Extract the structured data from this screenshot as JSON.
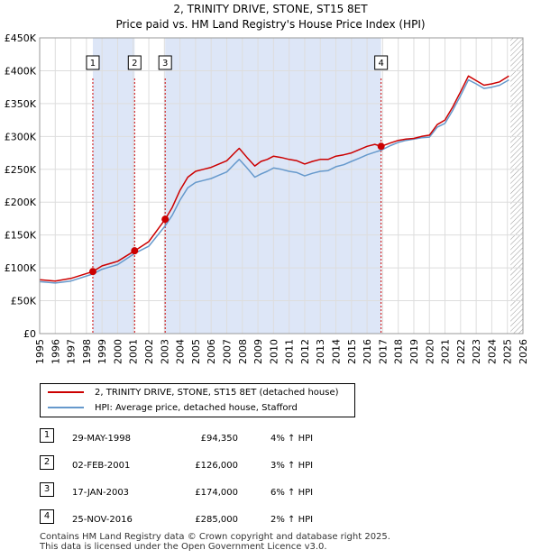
{
  "title_line1": "2, TRINITY DRIVE, STONE, ST15 8ET",
  "title_line2": "Price paid vs. HM Land Registry's House Price Index (HPI)",
  "legend": {
    "property_label": "2, TRINITY DRIVE, STONE, ST15 8ET (detached house)",
    "hpi_label": "HPI: Average price, detached house, Stafford"
  },
  "colors": {
    "property": "#cc0000",
    "hpi": "#6699cc",
    "band": "#dde6f7",
    "grid": "#dddddd",
    "vline": "#cc0000"
  },
  "transactions": [
    {
      "num": "1",
      "date": "29-MAY-1998",
      "price": "£94,350",
      "hpi_change": "4% ↑ HPI"
    },
    {
      "num": "2",
      "date": "02-FEB-2001",
      "price": "£126,000",
      "hpi_change": "3% ↑ HPI"
    },
    {
      "num": "3",
      "date": "17-JAN-2003",
      "price": "£174,000",
      "hpi_change": "6% ↑ HPI"
    },
    {
      "num": "4",
      "date": "25-NOV-2016",
      "price": "£285,000",
      "hpi_change": "2% ↑ HPI"
    }
  ],
  "footer_line1": "Contains HM Land Registry data © Crown copyright and database right 2025.",
  "footer_line2": "This data is licensed under the Open Government Licence v3.0.",
  "chart_data": {
    "type": "line",
    "title": "2, TRINITY DRIVE, STONE, ST15 8ET",
    "subtitle": "Price paid vs. HM Land Registry's House Price Index (HPI)",
    "xlabel": "",
    "ylabel": "",
    "xlim": [
      1995,
      2026
    ],
    "ylim": [
      0,
      450000
    ],
    "x_ticks": [
      1995,
      1996,
      1997,
      1998,
      1999,
      2000,
      2001,
      2002,
      2003,
      2004,
      2005,
      2006,
      2007,
      2008,
      2009,
      2010,
      2011,
      2012,
      2013,
      2014,
      2015,
      2016,
      2017,
      2018,
      2019,
      2020,
      2021,
      2022,
      2023,
      2024,
      2025,
      2026
    ],
    "y_ticks": [
      0,
      50000,
      100000,
      150000,
      200000,
      250000,
      300000,
      350000,
      400000,
      450000
    ],
    "y_tick_labels": [
      "£0",
      "£50K",
      "£100K",
      "£150K",
      "£200K",
      "£250K",
      "£300K",
      "£350K",
      "£400K",
      "£450K"
    ],
    "grid": true,
    "legend_position": "bottom-left",
    "shaded_periods": [
      [
        1998.41,
        2001.09
      ],
      [
        2003.05,
        2016.9
      ]
    ],
    "hatched_future_from": 2025.2,
    "sales": [
      {
        "label": "1",
        "x": 1998.41,
        "y": 94350
      },
      {
        "label": "2",
        "x": 2001.09,
        "y": 126000
      },
      {
        "label": "3",
        "x": 2003.05,
        "y": 174000
      },
      {
        "label": "4",
        "x": 2016.9,
        "y": 285000
      }
    ],
    "series": [
      {
        "name": "2, TRINITY DRIVE, STONE, ST15 8ET (detached house)",
        "x": [
          1995.0,
          1996.0,
          1997.0,
          1998.41,
          1999.0,
          2000.0,
          2001.09,
          2002.0,
          2003.05,
          2003.5,
          2004.0,
          2004.5,
          2005.0,
          2005.5,
          2006.0,
          2006.5,
          2007.0,
          2007.5,
          2007.8,
          2008.3,
          2008.8,
          2009.2,
          2009.6,
          2010.0,
          2010.5,
          2011.0,
          2011.5,
          2012.0,
          2012.5,
          2013.0,
          2013.5,
          2014.0,
          2014.5,
          2015.0,
          2015.5,
          2016.0,
          2016.5,
          2016.9,
          2017.5,
          2018.0,
          2018.5,
          2019.0,
          2019.5,
          2020.0,
          2020.5,
          2021.0,
          2021.5,
          2022.0,
          2022.5,
          2023.0,
          2023.5,
          2024.0,
          2024.5,
          2025.1
        ],
        "values": [
          82000,
          80000,
          84000,
          94350,
          103000,
          110000,
          126000,
          140000,
          174000,
          192000,
          218000,
          238000,
          247000,
          250000,
          253000,
          258000,
          263000,
          275000,
          282000,
          268000,
          255000,
          262000,
          265000,
          270000,
          268000,
          265000,
          263000,
          258000,
          262000,
          265000,
          265000,
          270000,
          272000,
          275000,
          280000,
          285000,
          288000,
          285000,
          290000,
          294000,
          296000,
          297000,
          300000,
          302000,
          318000,
          325000,
          345000,
          368000,
          392000,
          385000,
          378000,
          380000,
          383000,
          392000
        ]
      },
      {
        "name": "HPI: Average price, detached house, Stafford",
        "x": [
          1995.0,
          1996.0,
          1997.0,
          1998.41,
          1999.0,
          2000.0,
          2001.09,
          2002.0,
          2003.05,
          2003.5,
          2004.0,
          2004.5,
          2005.0,
          2005.5,
          2006.0,
          2006.5,
          2007.0,
          2007.5,
          2007.8,
          2008.3,
          2008.8,
          2009.2,
          2009.6,
          2010.0,
          2010.5,
          2011.0,
          2011.5,
          2012.0,
          2012.5,
          2013.0,
          2013.5,
          2014.0,
          2014.5,
          2015.0,
          2015.5,
          2016.0,
          2016.5,
          2016.9,
          2017.5,
          2018.0,
          2018.5,
          2019.0,
          2019.5,
          2020.0,
          2020.5,
          2021.0,
          2021.5,
          2022.0,
          2022.5,
          2023.0,
          2023.5,
          2024.0,
          2024.5,
          2025.1
        ],
        "values": [
          79000,
          77000,
          80000,
          90700,
          98000,
          105000,
          122000,
          133000,
          164000,
          180000,
          203000,
          222000,
          230000,
          233000,
          236000,
          241000,
          246000,
          258000,
          265000,
          252000,
          238000,
          243000,
          247000,
          252000,
          250000,
          247000,
          245000,
          240000,
          244000,
          247000,
          248000,
          254000,
          257000,
          262000,
          267000,
          272000,
          276000,
          279000,
          286000,
          291000,
          294000,
          296000,
          298000,
          299000,
          314000,
          320000,
          340000,
          362000,
          386000,
          380000,
          373000,
          375000,
          378000,
          386000
        ]
      }
    ]
  }
}
